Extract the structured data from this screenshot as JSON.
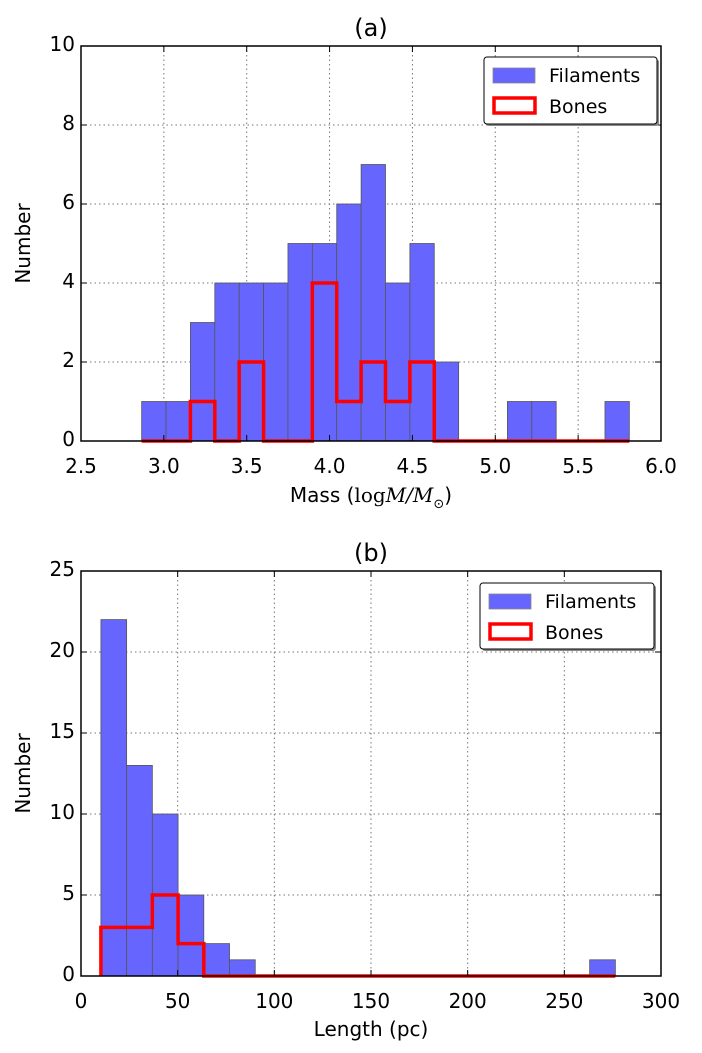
{
  "colors": {
    "filaments": "#6666ff",
    "bones": "#ff0000",
    "bar_edge": "#555555"
  },
  "chart_data": [
    {
      "type": "bar",
      "title": "(a)",
      "xlabel": {
        "prefix": "Mass (",
        "math": "log",
        "math_italic": "M/M",
        "sub": "⊙",
        "suffix": ")"
      },
      "ylabel": "Number",
      "xlim": [
        2.5,
        6.0
      ],
      "ylim": [
        0,
        10
      ],
      "xticks": [
        "2.5",
        "3.0",
        "3.5",
        "4.0",
        "4.5",
        "5.0",
        "5.5",
        "6.0"
      ],
      "yticks": [
        "0",
        "2",
        "4",
        "6",
        "8",
        "10"
      ],
      "grid": true,
      "legend_position": "top-right",
      "bin_edges_range": [
        2.866,
        5.809
      ],
      "series": [
        {
          "name": "Filaments",
          "style": "filled",
          "values": [
            1,
            1,
            3,
            4,
            4,
            4,
            5,
            5,
            6,
            7,
            4,
            5,
            2,
            0,
            0,
            1,
            1,
            0,
            0,
            1
          ]
        },
        {
          "name": "Bones",
          "style": "step",
          "values": [
            0,
            0,
            1,
            0,
            2,
            0,
            0,
            4,
            1,
            2,
            1,
            2,
            0,
            0,
            0,
            0,
            0,
            0,
            0,
            0
          ]
        }
      ]
    },
    {
      "type": "bar",
      "title": "(b)",
      "xlabel": {
        "prefix": "Length (pc)",
        "math": "",
        "math_italic": "",
        "sub": "",
        "suffix": ""
      },
      "ylabel": "Number",
      "xlim": [
        0,
        300
      ],
      "ylim": [
        0,
        25
      ],
      "xticks": [
        "0",
        "50",
        "100",
        "150",
        "200",
        "250",
        "300"
      ],
      "yticks": [
        "0",
        "5",
        "10",
        "15",
        "20",
        "25"
      ],
      "grid": true,
      "legend_position": "top-right",
      "bin_edges_range": [
        10.3,
        276.4
      ],
      "series": [
        {
          "name": "Filaments",
          "style": "filled",
          "values": [
            22,
            13,
            10,
            5,
            2,
            1,
            0,
            0,
            0,
            0,
            0,
            0,
            0,
            0,
            0,
            0,
            0,
            0,
            0,
            1
          ]
        },
        {
          "name": "Bones",
          "style": "step",
          "values": [
            3,
            3,
            5,
            2,
            0,
            0,
            0,
            0,
            0,
            0,
            0,
            0,
            0,
            0,
            0,
            0,
            0,
            0,
            0,
            0
          ]
        }
      ]
    }
  ]
}
